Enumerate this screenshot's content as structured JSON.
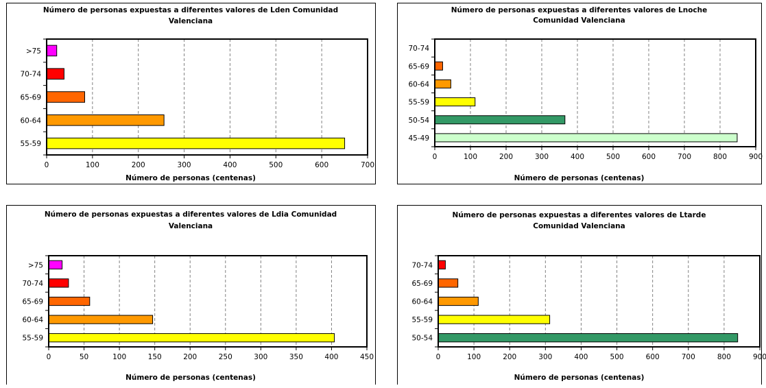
{
  "xlabel": "Número de personas (centenas)",
  "colors": {
    "band_45_49": "#ccffcc",
    "band_50_54": "#339966",
    "band_55_59": "#ffff00",
    "band_60_64": "#ff9900",
    "band_65_69": "#ff6600",
    "band_70_74": "#ff0000",
    "band_gt75": "#ff00ff"
  },
  "chart_data": [
    {
      "type": "bar",
      "orientation": "horizontal",
      "title": [
        "Número de personas expuestas a diferentes valores de Lden Comunidad",
        "Valenciana"
      ],
      "xlabel": "Número de personas (centenas)",
      "categories": [
        ">75",
        "70-74",
        "65-69",
        "60-64",
        "55-59"
      ],
      "values": [
        22,
        38,
        83,
        256,
        650
      ],
      "bar_colors": [
        "#ff00ff",
        "#ff0000",
        "#ff6600",
        "#ff9900",
        "#ffff00"
      ],
      "xlim": [
        0,
        700
      ],
      "xticks": [
        0,
        100,
        200,
        300,
        400,
        500,
        600,
        700
      ],
      "grid": "vertical dashed"
    },
    {
      "type": "bar",
      "orientation": "horizontal",
      "title": [
        "Número de personas expuestas a diferentes valores de Lnoche",
        "Comunidad Valenciana"
      ],
      "xlabel": "Número de personas (centenas)",
      "categories": [
        "70-74",
        "65-69",
        "60-64",
        "55-59",
        "50-54",
        "45-49"
      ],
      "values": [
        0,
        22,
        45,
        113,
        365,
        848
      ],
      "bar_colors": [
        "#ff0000",
        "#ff6600",
        "#ff9900",
        "#ffff00",
        "#339966",
        "#ccffcc"
      ],
      "xlim": [
        0,
        900
      ],
      "xticks": [
        0,
        100,
        200,
        300,
        400,
        500,
        600,
        700,
        800,
        900
      ],
      "grid": "vertical dashed"
    },
    {
      "type": "bar",
      "orientation": "horizontal",
      "title": [
        "Número de personas expuestas a diferentes valores de Ldia Comunidad",
        "Valenciana"
      ],
      "xlabel": "Número de personas (centenas)",
      "categories": [
        ">75",
        "70-74",
        "65-69",
        "60-64",
        "55-59"
      ],
      "values": [
        19,
        28,
        58,
        147,
        404
      ],
      "bar_colors": [
        "#ff00ff",
        "#ff0000",
        "#ff6600",
        "#ff9900",
        "#ffff00"
      ],
      "xlim": [
        0,
        450
      ],
      "xticks": [
        0,
        50,
        100,
        150,
        200,
        250,
        300,
        350,
        400,
        450
      ],
      "grid": "vertical dashed"
    },
    {
      "type": "bar",
      "orientation": "horizontal",
      "title": [
        "Número de personas expuestas a diferentes valores de Ltarde",
        "Comunidad Valenciana"
      ],
      "xlabel": "Número de personas (centenas)",
      "categories": [
        "70-74",
        "65-69",
        "60-64",
        "55-59",
        "50-54"
      ],
      "values": [
        20,
        55,
        112,
        312,
        838
      ],
      "bar_colors": [
        "#ff0000",
        "#ff6600",
        "#ff9900",
        "#ffff00",
        "#339966"
      ],
      "xlim": [
        0,
        900
      ],
      "xticks": [
        0,
        100,
        200,
        300,
        400,
        500,
        600,
        700,
        800,
        900
      ],
      "grid": "vertical dashed"
    }
  ]
}
